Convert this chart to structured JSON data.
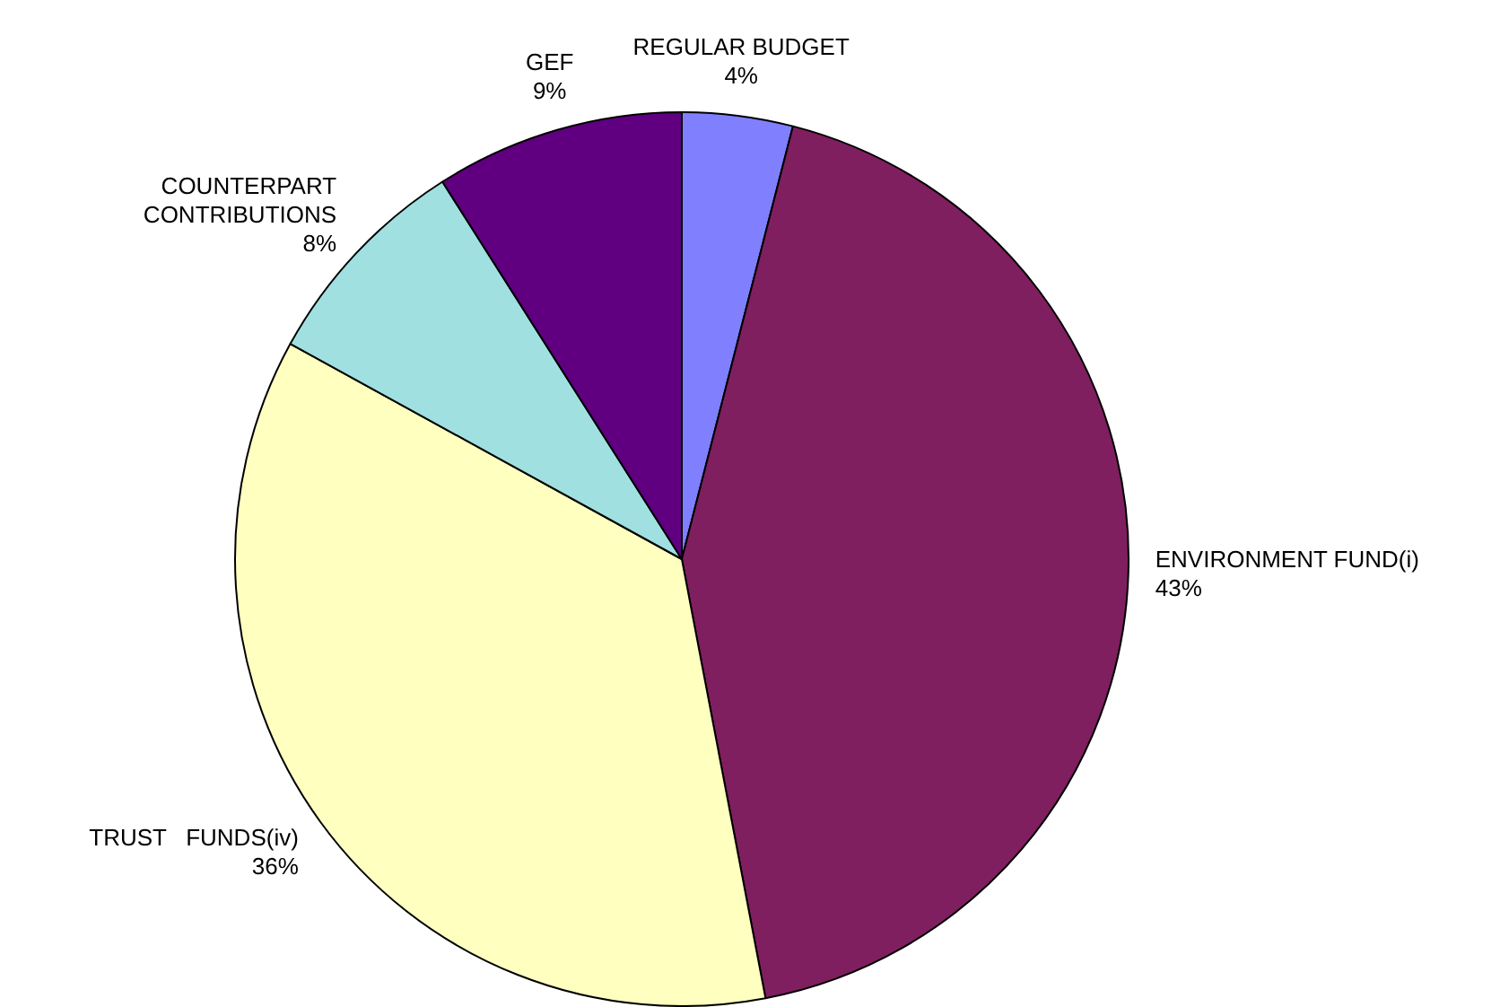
{
  "chart_data": {
    "type": "pie",
    "categories": [
      "REGULAR BUDGET",
      "ENVIRONMENT FUND(i)",
      "TRUST   FUNDS(iv)",
      "COUNTERPART CONTRIBUTIONS",
      "GEF"
    ],
    "values": [
      4,
      43,
      36,
      8,
      9
    ],
    "value_labels": [
      "4%",
      "43%",
      "36%",
      "8%",
      "9%"
    ],
    "colors": [
      "#8080ff",
      "#7f1f5f",
      "#ffffc0",
      "#a0e0e0",
      "#600080"
    ],
    "legend": false
  }
}
